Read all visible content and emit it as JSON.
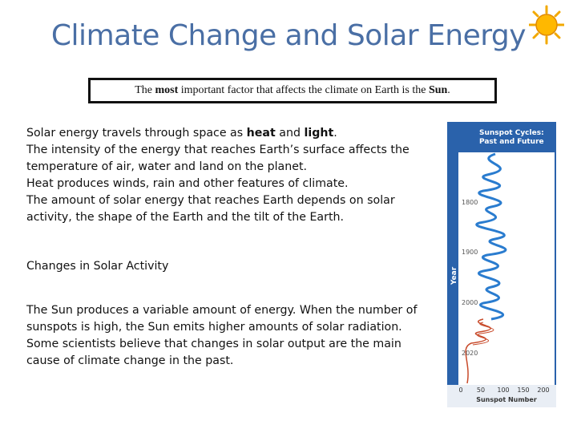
{
  "title": "Climate Change and Solar Energy",
  "callout": [
    {
      "text": "The "
    },
    {
      "text": "most",
      "bold": true
    },
    {
      "text": " important factor that affects the climate on Earth is the "
    },
    {
      "text": "Sun",
      "bold": true
    },
    {
      "text": "."
    }
  ],
  "body": [
    [
      {
        "text": "Solar energy travels through space as "
      },
      {
        "text": "heat",
        "bold": true
      },
      {
        "text": " and "
      },
      {
        "text": "light",
        "bold": true
      },
      {
        "text": "."
      }
    ],
    [
      {
        "text": "The intensity of the energy that reaches Earth’s surface affects the"
      }
    ],
    [
      {
        "text": "temperature of air, water and land on the planet."
      }
    ],
    [
      {
        "text": "Heat produces winds, rain and other features of climate."
      }
    ],
    [
      {
        "text": "The amount of solar energy that reaches Earth depends on solar"
      }
    ],
    [
      {
        "text": "activity, the shape of the Earth and the tilt of the Earth."
      }
    ]
  ],
  "heading": "Changes in Solar Activity",
  "paragraph": [
    "The Sun produces a variable amount of energy.  When the number of",
    "sunspots is high, the Sun emits higher amounts of solar radiation.",
    "Some scientists believe that changes in solar output are the main",
    "cause of climate change in the past."
  ],
  "figure": {
    "title": [
      "Sunspot Cycles:",
      "Past and Future"
    ],
    "y_label": "Year",
    "y_ticks": [
      "1800",
      "1900",
      "2000",
      "2020"
    ],
    "x_ticks": [
      "0",
      "50",
      "100",
      "150",
      "200"
    ],
    "x_label": "Sunspot Number"
  }
}
